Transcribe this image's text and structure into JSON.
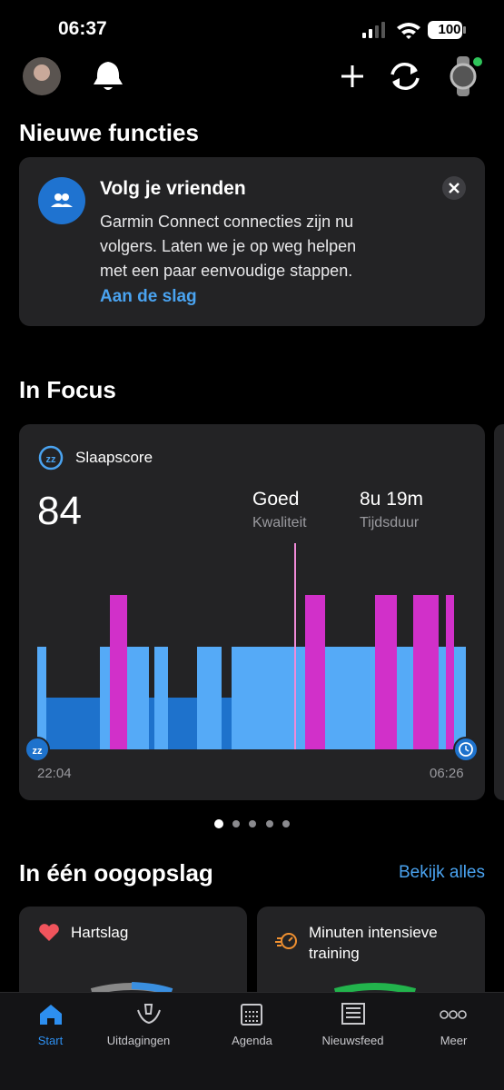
{
  "status_bar": {
    "time": "06:37",
    "battery": "100"
  },
  "new_features": {
    "heading": "Nieuwe functies",
    "card": {
      "title": "Volg je vrienden",
      "body_lines": [
        "Garmin Connect connecties zijn nu",
        "volgers. Laten we je op weg helpen",
        "met een paar eenvoudige stappen."
      ],
      "link": "Aan de slag"
    }
  },
  "in_focus": {
    "heading": "In Focus",
    "card": {
      "title": "Slaapscore",
      "score": 84,
      "quality_value": "Goed",
      "quality_label": "Kwaliteit",
      "duration_value": "8u 19m",
      "duration_label": "Tijdsduur",
      "start_time": "22:04",
      "end_time": "06:26"
    }
  },
  "at_a_glance": {
    "heading": "In één oogopslag",
    "link": "Bekijk alles",
    "cards": [
      "Hartslag",
      "Minuten intensieve training"
    ]
  },
  "tab_bar": [
    "Start",
    "Uitdagingen",
    "Agenda",
    "Nieuwsfeed",
    "Meer"
  ]
}
